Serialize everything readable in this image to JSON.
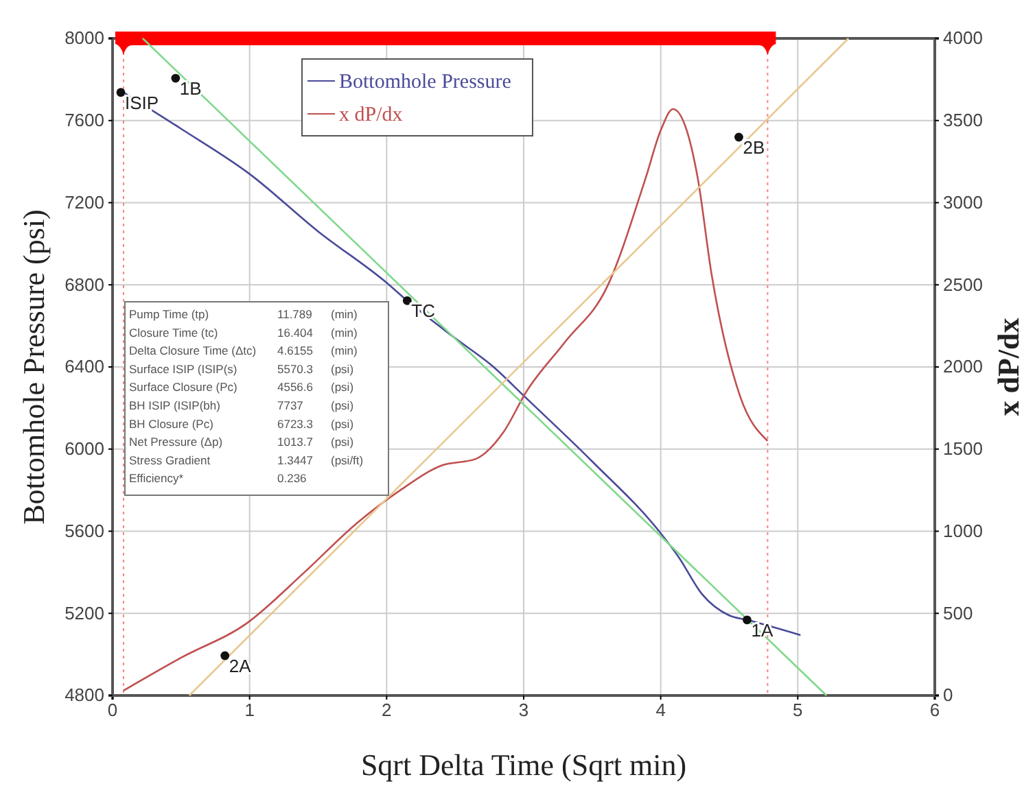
{
  "chart_data": {
    "type": "line",
    "xlabel": "Sqrt Delta Time (Sqrt min)",
    "ylabel": "Bottomhole Pressure (psi)",
    "y2label": "x dP/dx",
    "xlim": [
      0,
      6
    ],
    "xticks": [
      0,
      1,
      2,
      3,
      4,
      5,
      6
    ],
    "ylim": [
      4800,
      8000
    ],
    "yticks": [
      4800,
      5200,
      5600,
      6000,
      6400,
      6800,
      7200,
      7600,
      8000
    ],
    "y2lim": [
      0,
      4000
    ],
    "y2ticks": [
      0,
      500,
      1000,
      1500,
      2000,
      2500,
      3000,
      3500,
      4000
    ],
    "grid": true,
    "legend": "top",
    "line_style": "solid",
    "marker": "none",
    "series": [
      {
        "name": "Bottomhole Pressure",
        "color": "#4a4a9a",
        "x": [
          0.08,
          0.5,
          1.0,
          1.5,
          2.0,
          2.15,
          2.5,
          2.78,
          3.0,
          3.5,
          4.0,
          4.13,
          4.3,
          4.5,
          4.63,
          5.02
        ],
        "values": [
          7737,
          7560,
          7340,
          7060,
          6810,
          6723,
          6540,
          6400,
          6260,
          5940,
          5590,
          5475,
          5295,
          5190,
          5168,
          5094
        ]
      },
      {
        "name": "x dP/dx",
        "color": "#c05050",
        "axis": "y2",
        "x": [
          0.08,
          0.5,
          0.98,
          1.4,
          1.77,
          2.1,
          2.4,
          2.65,
          2.85,
          3.02,
          3.3,
          3.61,
          3.89,
          4.0,
          4.09,
          4.19,
          4.27,
          4.37,
          4.58,
          4.78
        ],
        "values": [
          30,
          230,
          440,
          750,
          1040,
          1250,
          1400,
          1440,
          1600,
          1850,
          2150,
          2490,
          3150,
          3440,
          3570,
          3440,
          3150,
          2570,
          1820,
          1550
        ]
      },
      {
        "color": "#7fd88a",
        "x": [
          0.22,
          5.21
        ],
        "values": [
          8000,
          4800
        ]
      },
      {
        "color": "#e8c890",
        "axis": "y2",
        "x": [
          0.56,
          5.37
        ],
        "values": [
          0,
          4000
        ]
      }
    ],
    "ref_lines": [
      {
        "axis": "x",
        "value": 0.08,
        "color": "#ff0000",
        "line_style": "dotted"
      },
      {
        "axis": "x",
        "value": 4.78,
        "color": "#ff0000",
        "line_style": "dotted"
      }
    ],
    "annotations": [
      {
        "text": "ISIP",
        "x": 0.06,
        "y": 7737
      },
      {
        "text": "1B",
        "x": 0.46,
        "y": 7806
      },
      {
        "text": "TC",
        "x": 2.15,
        "y": 6723
      },
      {
        "text": "1A",
        "x": 4.63,
        "y": 5168
      },
      {
        "text": "2A",
        "x": 0.82,
        "y": 4994
      },
      {
        "text": "2B",
        "x": 4.57,
        "y": 7519
      },
      "Pump Time (tp)\t11.789\t(min)",
      "Closure Time (tc)\t16.404\t(min)",
      "Delta Closure Time (Δtc)\t4.6155\t(min)",
      "Surface ISIP (ISIP(s)\t5570.3\t(psi)",
      "Surface Closure (Pc)\t4556.6\t(psi)",
      "BH ISIP (ISIP(bh)\t7737\t(psi)",
      "BH Closure (Pc)\t6723.3\t(psi)",
      "Net Pressure (Δp)\t1013.7\t(psi)",
      "Stress Gradient\t1.3447\t(psi/ft)",
      "Efficiency*\t0.236"
    ]
  }
}
